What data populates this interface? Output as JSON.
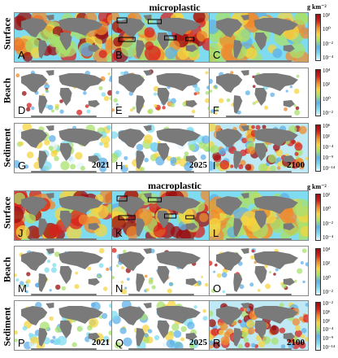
{
  "titles": {
    "micro": "microplastic",
    "macro": "macroplastic"
  },
  "rows": [
    "Surface",
    "Beach",
    "Sediment",
    "Surface",
    "Beach",
    "Sediment"
  ],
  "panel_letters": [
    "A",
    "B",
    "C",
    "D",
    "E",
    "F",
    "G",
    "H",
    "I",
    "J",
    "K",
    "L",
    "M",
    "N",
    "O",
    "P",
    "Q",
    "R"
  ],
  "years": [
    "2021",
    "2025",
    "2100"
  ],
  "unit_label": "g km⁻²",
  "colorbars": [
    {
      "ticks": [
        "10²",
        "10⁰",
        "10⁻²",
        "10⁻⁴"
      ]
    },
    {
      "ticks": [
        "10⁴",
        "10²",
        "10⁰",
        "10⁻²"
      ]
    },
    {
      "ticks": [
        "10⁶",
        "10¹",
        "10⁻⁴",
        "10⁻⁹",
        "10⁻¹⁴"
      ]
    },
    {
      "ticks": [
        "10²",
        "10⁰",
        "10⁻²",
        "10⁻⁴"
      ]
    },
    {
      "ticks": [
        "10⁴",
        "10²",
        "10⁰",
        "10⁻²"
      ]
    },
    {
      "ticks": [
        "10⁻²",
        "10⁶",
        "10¹",
        "10⁻⁴",
        "10⁻⁹",
        "10⁻¹⁴"
      ]
    }
  ],
  "chart_data": {
    "type": "heatmap",
    "titles": [
      "microplastic",
      "macroplastic"
    ],
    "row_labels": [
      "Surface",
      "Beach",
      "Sediment"
    ],
    "column_years_shown": [
      "2021",
      "2025",
      "2100"
    ],
    "colorbar_unit": "g km⁻²",
    "colorbar_ranges_log10": {
      "surface": [
        -4,
        2
      ],
      "beach": [
        -2,
        4
      ],
      "sediment": [
        -14,
        6
      ]
    },
    "colormap_stops": [
      "#e6f6fb",
      "#7fdcf0",
      "#5fb0e8",
      "#a8e06c",
      "#f5d540",
      "#f08a2c",
      "#d8201c",
      "#9a0c10"
    ],
    "highlight_boxes_panels": [
      "B",
      "K"
    ]
  }
}
